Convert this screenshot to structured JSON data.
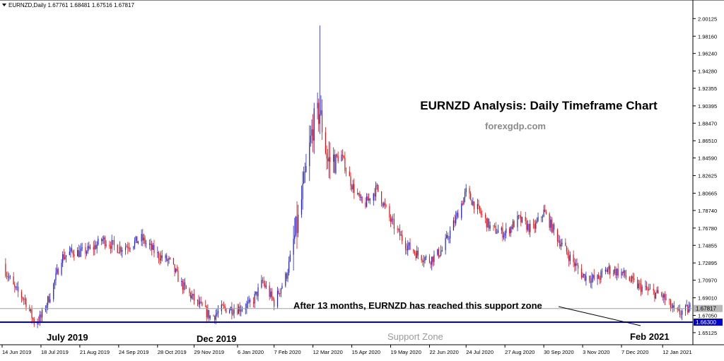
{
  "header": {
    "symbol_info": "EURNZD,Daily  1.67761 1.68481 1.67516 1.67817"
  },
  "annotations": {
    "title": "EURNZD Analysis: Daily Timeframe Chart",
    "site": "forexgdp.com",
    "callout": "After 13 months, EURNZD has reached this support zone",
    "support_zone_label": "Support Zone",
    "period_labels": [
      "July 2019",
      "Dec 2019",
      "Feb 2021"
    ]
  },
  "price_tags": {
    "current": "1.67817",
    "support": "1.66300"
  },
  "colors": {
    "up": "#1f1fc8",
    "down": "#e01010",
    "support_line": "#0000cc",
    "current_line": "#a0a0a0",
    "current_tag": "#b8b8b8",
    "support_tag": "#0000cc"
  },
  "chart_data": {
    "type": "candlestick",
    "title": "EURNZD Analysis: Daily Timeframe Chart",
    "ylim": [
      1.6425,
      2.0125
    ],
    "y_ticks": [
      "2.00125",
      "1.98160",
      "1.96240",
      "1.94280",
      "1.92355",
      "1.90395",
      "1.88470",
      "1.86510",
      "1.84590",
      "1.82625",
      "1.80665",
      "1.78740",
      "1.76780",
      "1.74855",
      "1.72895",
      "1.70970",
      "1.69010",
      "1.67050",
      "1.65125"
    ],
    "x_tick_labels": [
      "14 Jun 2019",
      "18 Jul 2019",
      "21 Aug 2019",
      "24 Sep 2019",
      "28 Oct 2019",
      "29 Nov 2019",
      "6 Jan 2020",
      "7 Feb 2020",
      "12 Mar 2020",
      "15 Apr 2020",
      "19 May 2020",
      "22 Jun 2020",
      "24 Jul 2020",
      "27 Aug 2020",
      "30 Sep 2020",
      "3 Nov 2020",
      "7 Dec 2020",
      "12 Jan 2021"
    ],
    "support_level": 1.663,
    "current_price": 1.67817,
    "ohlc_last": {
      "open": 1.67761,
      "high": 1.68481,
      "low": 1.67516,
      "close": 1.67817
    },
    "close_path": [
      [
        "14 Jun 2019",
        1.728
      ],
      [
        "25 Jun 2019",
        1.7
      ],
      [
        "4 Jul 2019",
        1.688
      ],
      [
        "12 Jul 2019",
        1.663
      ],
      [
        "18 Jul 2019",
        1.668
      ],
      [
        "28 Jul 2019",
        1.7
      ],
      [
        "5 Aug 2019",
        1.735
      ],
      [
        "15 Aug 2019",
        1.742
      ],
      [
        "21 Aug 2019",
        1.74
      ],
      [
        "1 Sep 2019",
        1.745
      ],
      [
        "10 Sep 2019",
        1.755
      ],
      [
        "24 Sep 2019",
        1.745
      ],
      [
        "5 Oct 2019",
        1.75
      ],
      [
        "14 Oct 2019",
        1.756
      ],
      [
        "28 Oct 2019",
        1.738
      ],
      [
        "8 Nov 2019",
        1.73
      ],
      [
        "18 Nov 2019",
        1.705
      ],
      [
        "29 Nov 2019",
        1.688
      ],
      [
        "14 Dec 2019",
        1.668
      ],
      [
        "24 Dec 2019",
        1.678
      ],
      [
        "6 Jan 2020",
        1.678
      ],
      [
        "18 Jan 2020",
        1.683
      ],
      [
        "28 Jan 2020",
        1.708
      ],
      [
        "7 Feb 2020",
        1.685
      ],
      [
        "18 Feb 2020",
        1.716
      ],
      [
        "28 Feb 2020",
        1.775
      ],
      [
        "7 Mar 2020",
        1.838
      ],
      [
        "12 Mar 2020",
        1.882
      ],
      [
        "18 Mar 2020",
        1.897
      ],
      [
        "25 Mar 2020",
        1.842
      ],
      [
        "6 Apr 2020",
        1.848
      ],
      [
        "15 Apr 2020",
        1.816
      ],
      [
        "25 Apr 2020",
        1.792
      ],
      [
        "7 May 2020",
        1.812
      ],
      [
        "19 May 2020",
        1.776
      ],
      [
        "1 Jun 2020",
        1.75
      ],
      [
        "12 Jun 2020",
        1.738
      ],
      [
        "22 Jun 2020",
        1.732
      ],
      [
        "3 Jul 2020",
        1.743
      ],
      [
        "14 Jul 2020",
        1.775
      ],
      [
        "24 Jul 2020",
        1.808
      ],
      [
        "4 Aug 2020",
        1.787
      ],
      [
        "15 Aug 2020",
        1.767
      ],
      [
        "27 Aug 2020",
        1.762
      ],
      [
        "8 Sep 2020",
        1.778
      ],
      [
        "20 Sep 2020",
        1.765
      ],
      [
        "30 Sep 2020",
        1.786
      ],
      [
        "12 Oct 2020",
        1.757
      ],
      [
        "24 Oct 2020",
        1.733
      ],
      [
        "3 Nov 2020",
        1.715
      ],
      [
        "15 Nov 2020",
        1.71
      ],
      [
        "25 Nov 2020",
        1.722
      ],
      [
        "7 Dec 2020",
        1.718
      ],
      [
        "19 Dec 2020",
        1.705
      ],
      [
        "30 Dec 2020",
        1.698
      ],
      [
        "12 Jan 2021",
        1.692
      ],
      [
        "24 Jan 2021",
        1.672
      ],
      [
        "5 Feb 2021",
        1.678
      ]
    ]
  }
}
